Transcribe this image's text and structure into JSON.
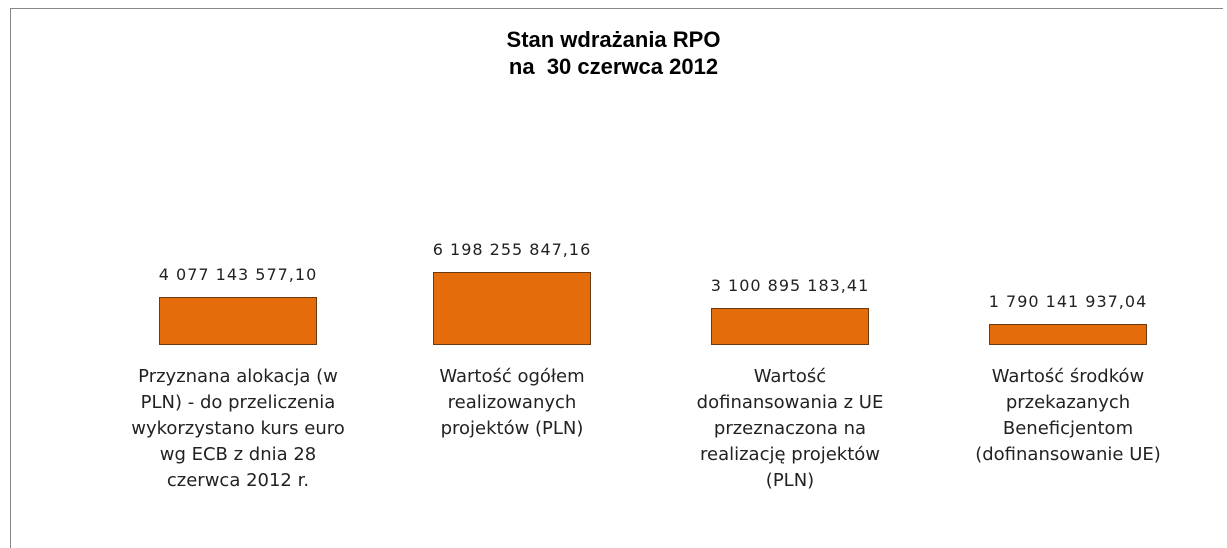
{
  "chart_data": {
    "type": "bar",
    "title": "Stan wdrażania RPO\nna  30 czerwca 2012",
    "categories": [
      "Przyznana alokacja (w\nPLN) - do przeliczenia\nwykorzystano kurs euro\nwg ECB z dnia 28\nczerwca 2012 r.",
      "Wartość ogółem\nrealizowanych\nprojektów (PLN)",
      "Wartość\ndofinansowania z UE\nprzeznaczona na\nrealizację projektów\n(PLN)",
      "Wartość środków\nprzekazanych\nBeneficjentom\n(dofinansowanie UE)"
    ],
    "values": [
      4077143577.1,
      6198255847.16,
      3100895183.41,
      1790141937.04
    ],
    "value_labels": [
      "4 077 143 577,10",
      "6 198 255 847,16",
      "3 100 895 183,41",
      "1 790 141 937,04"
    ],
    "color": "#e46c0a"
  }
}
